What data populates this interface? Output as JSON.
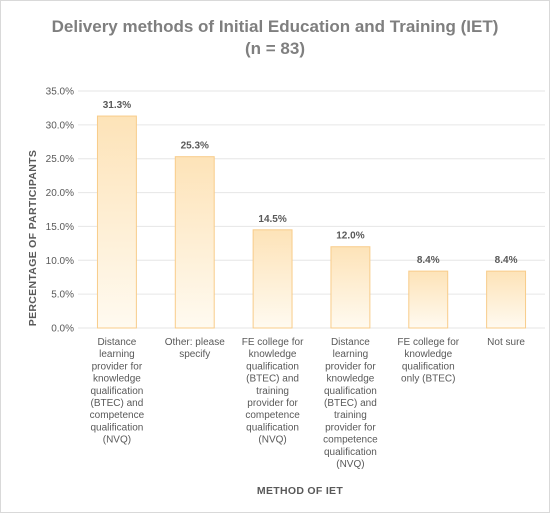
{
  "chart_data": {
    "type": "bar",
    "title": "Delivery methods of Initial Education and Training (IET)",
    "subtitle": "(n = 83)",
    "xlabel": "METHOD OF IET",
    "ylabel": "PERCENTAGE OF PARTICIPANTS",
    "ylim": [
      0,
      35
    ],
    "yticks": [
      "0.0%",
      "5.0%",
      "10.0%",
      "15.0%",
      "20.0%",
      "25.0%",
      "30.0%",
      "35.0%"
    ],
    "grid": true,
    "categories": [
      [
        "Distance",
        "learning",
        "provider for",
        "knowledge",
        "qualification",
        "(BTEC) and",
        "competence",
        "qualification",
        "(NVQ)"
      ],
      [
        "Other: please",
        "specify"
      ],
      [
        "FE college for",
        "knowledge",
        "qualification",
        "(BTEC) and",
        "training",
        "provider for",
        "competence",
        "qualification",
        "(NVQ)"
      ],
      [
        "Distance",
        "learning",
        "provider for",
        "knowledge",
        "qualification",
        "(BTEC) and",
        "training",
        "provider for",
        "competence",
        "qualification",
        "(NVQ)"
      ],
      [
        "FE college for",
        "knowledge",
        "qualification",
        "only (BTEC)"
      ],
      [
        "Not sure"
      ]
    ],
    "values": [
      31.3,
      25.3,
      14.5,
      12.0,
      8.4,
      8.4
    ],
    "data_labels": [
      "31.3%",
      "25.3%",
      "14.5%",
      "12.0%",
      "8.4%",
      "8.4%"
    ],
    "colors": {
      "bar_top": "#fde3b8",
      "bar_bottom": "#fffaf0",
      "bar_border": "#f8cc8a",
      "grid": "#e6e6e6"
    }
  }
}
